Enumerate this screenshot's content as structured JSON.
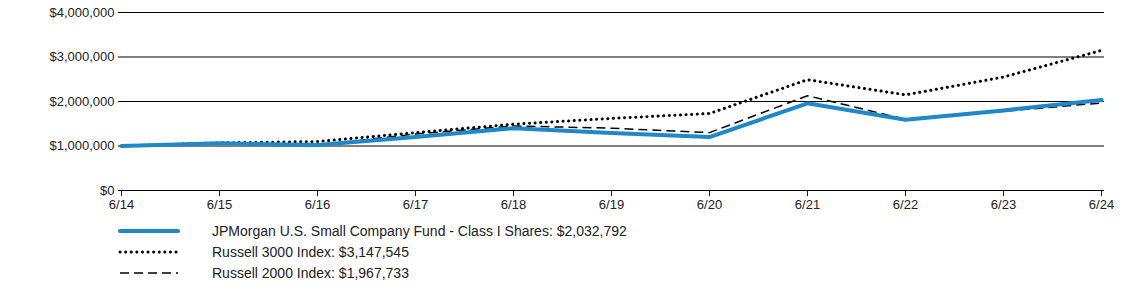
{
  "chart_data": {
    "type": "line",
    "x": [
      "6/14",
      "6/15",
      "6/16",
      "6/17",
      "6/18",
      "6/19",
      "6/20",
      "6/21",
      "6/22",
      "6/23",
      "6/24"
    ],
    "series": [
      {
        "name": "JPMorgan U.S. Small Company Fund - Class I Shares: $2,032,792",
        "color": "#1f88c9",
        "line_style": "solid",
        "values": [
          1000000,
          1060000,
          1020000,
          1200000,
          1400000,
          1290000,
          1200000,
          1960000,
          1590000,
          1800000,
          2032792
        ]
      },
      {
        "name": "Russell 3000 Index: $3,147,545",
        "color": "#000000",
        "line_style": "dotted",
        "values": [
          1000000,
          1070000,
          1100000,
          1300000,
          1490000,
          1620000,
          1730000,
          2490000,
          2150000,
          2550000,
          3147545
        ]
      },
      {
        "name": "Russell 2000 Index: $1,967,733",
        "color": "#000000",
        "line_style": "dashed",
        "values": [
          1000000,
          1070000,
          1020000,
          1270000,
          1450000,
          1400000,
          1300000,
          2130000,
          1600000,
          1780000,
          1967733
        ]
      }
    ],
    "ylim": [
      0,
      4000000
    ],
    "yticks": [
      {
        "value": 0,
        "label": "$0"
      },
      {
        "value": 1000000,
        "label": "$1,000,000"
      },
      {
        "value": 2000000,
        "label": "$2,000,000"
      },
      {
        "value": 3000000,
        "label": "$3,000,000"
      },
      {
        "value": 4000000,
        "label": "$4,000,000"
      }
    ],
    "grid": true,
    "legend": "bottom"
  }
}
